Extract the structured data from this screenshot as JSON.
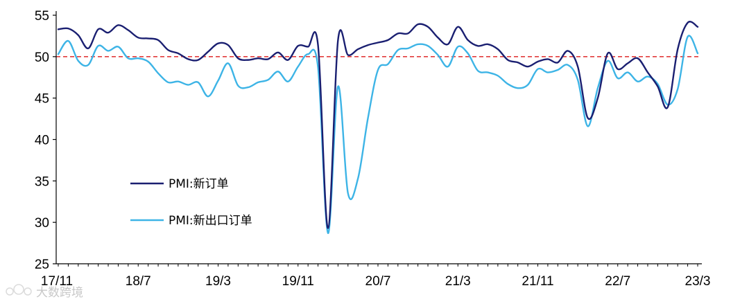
{
  "chart_data": {
    "type": "line",
    "x": [
      "17/11",
      "17/12",
      "18/1",
      "18/2",
      "18/3",
      "18/4",
      "18/5",
      "18/6",
      "18/7",
      "18/8",
      "18/9",
      "18/10",
      "18/11",
      "18/12",
      "19/1",
      "19/2",
      "19/3",
      "19/4",
      "19/5",
      "19/6",
      "19/7",
      "19/8",
      "19/9",
      "19/10",
      "19/11",
      "19/12",
      "20/1",
      "20/2",
      "20/3",
      "20/4",
      "20/5",
      "20/6",
      "20/7",
      "20/8",
      "20/9",
      "20/10",
      "20/11",
      "20/12",
      "21/1",
      "21/2",
      "21/3",
      "21/4",
      "21/5",
      "21/6",
      "21/7",
      "21/8",
      "21/9",
      "21/10",
      "21/11",
      "21/12",
      "22/1",
      "22/2",
      "22/3",
      "22/4",
      "22/5",
      "22/6",
      "22/7",
      "22/8",
      "22/9",
      "22/10",
      "22/11",
      "22/12",
      "23/1",
      "23/2",
      "23/3"
    ],
    "xticks": [
      "17/11",
      "18/7",
      "19/3",
      "19/11",
      "20/7",
      "21/3",
      "21/11",
      "22/7",
      "23/3"
    ],
    "ylim": [
      25,
      55
    ],
    "yticks": [
      25,
      30,
      35,
      40,
      45,
      50,
      55
    ],
    "reference_line": 50,
    "series": [
      {
        "name": "PMI:新订单",
        "color": "#1a1f71",
        "values": [
          53.3,
          53.4,
          52.6,
          51.0,
          53.3,
          52.9,
          53.8,
          53.2,
          52.3,
          52.2,
          52.0,
          50.8,
          50.4,
          49.7,
          49.6,
          50.6,
          51.6,
          51.4,
          49.8,
          49.6,
          49.8,
          49.7,
          50.5,
          49.6,
          51.3,
          51.2,
          51.4,
          29.3,
          52.0,
          50.2,
          50.9,
          51.4,
          51.7,
          52.0,
          52.8,
          52.8,
          53.9,
          53.6,
          52.3,
          51.5,
          53.6,
          52.0,
          51.3,
          51.5,
          50.9,
          49.6,
          49.3,
          48.8,
          49.4,
          49.7,
          49.3,
          50.7,
          48.8,
          42.6,
          45.0,
          50.4,
          48.5,
          49.2,
          49.8,
          48.1,
          46.4,
          43.9,
          50.9,
          54.1,
          53.6
        ]
      },
      {
        "name": "PMI:新出口订单",
        "color": "#3db4e6",
        "values": [
          50.3,
          51.9,
          49.5,
          49.0,
          51.3,
          50.7,
          51.2,
          49.8,
          49.8,
          49.4,
          48.0,
          46.9,
          47.0,
          46.6,
          46.9,
          45.2,
          47.1,
          49.2,
          46.5,
          46.3,
          46.9,
          47.2,
          48.2,
          47.0,
          48.8,
          50.3,
          48.7,
          28.7,
          46.4,
          33.5,
          35.3,
          42.6,
          48.4,
          49.1,
          50.8,
          51.0,
          51.5,
          51.3,
          50.2,
          48.8,
          51.2,
          50.4,
          48.3,
          48.1,
          47.7,
          46.7,
          46.2,
          46.6,
          48.5,
          48.1,
          48.4,
          49.0,
          47.2,
          41.6,
          46.2,
          49.5,
          47.4,
          48.1,
          47.0,
          47.6,
          46.7,
          44.2,
          46.1,
          52.4,
          50.4
        ]
      }
    ]
  },
  "watermark": {
    "text": "大数跨境"
  }
}
